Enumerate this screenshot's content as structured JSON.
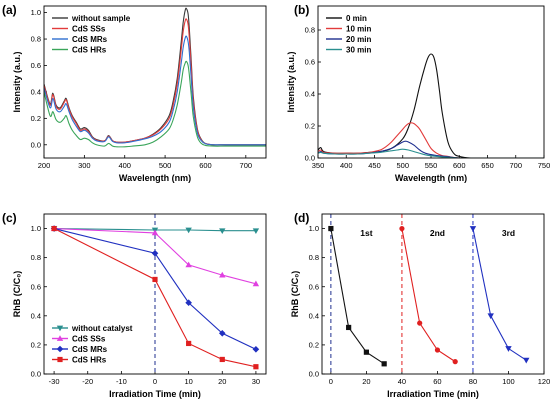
{
  "panels": [
    {
      "id": "a",
      "label": "(a)",
      "type": "line",
      "xlabel": "Wavelength (nm)",
      "ylabel": "Intensity (a.u.)",
      "xlim": [
        200,
        750
      ],
      "ylim": [
        -0.1,
        1.05
      ],
      "xticks": [
        200,
        300,
        400,
        500,
        600,
        700
      ],
      "yticks": [
        0.0,
        0.2,
        0.4,
        0.6,
        0.8,
        1.0
      ],
      "ytick_labels": [
        "0.0",
        "0.2",
        "0.4",
        "0.6",
        "0.8",
        "1.0"
      ],
      "legend_position": "top-left",
      "markers": false,
      "series": [
        {
          "name": "without sample",
          "color": "#3a3a3a",
          "smooth": true,
          "x": [
            200,
            215,
            222,
            230,
            240,
            250,
            255,
            262,
            270,
            280,
            290,
            300,
            310,
            320,
            330,
            350,
            360,
            370,
            380,
            400,
            420,
            450,
            470,
            490,
            510,
            520,
            530,
            540,
            545,
            550,
            553,
            557,
            560,
            565,
            570,
            580,
            590,
            600,
            620,
            650,
            700,
            750
          ],
          "y": [
            0.46,
            0.31,
            0.39,
            0.3,
            0.28,
            0.33,
            0.35,
            0.28,
            0.22,
            0.17,
            0.12,
            0.13,
            0.11,
            0.06,
            0.04,
            0.03,
            0.07,
            0.03,
            0.02,
            0.02,
            0.03,
            0.05,
            0.08,
            0.13,
            0.22,
            0.33,
            0.5,
            0.78,
            0.93,
            1.02,
            1.03,
            0.99,
            0.88,
            0.62,
            0.36,
            0.12,
            0.04,
            0.01,
            0.0,
            0.0,
            0.0,
            0.0
          ]
        },
        {
          "name": "CdS SSs",
          "color": "#e23b3b",
          "smooth": true,
          "x": [
            200,
            215,
            222,
            230,
            240,
            250,
            255,
            262,
            270,
            280,
            290,
            300,
            310,
            320,
            330,
            350,
            360,
            370,
            380,
            400,
            420,
            450,
            470,
            490,
            510,
            520,
            530,
            540,
            545,
            550,
            553,
            557,
            560,
            565,
            570,
            580,
            590,
            600,
            620,
            650,
            700,
            750
          ],
          "y": [
            0.45,
            0.3,
            0.38,
            0.29,
            0.27,
            0.32,
            0.34,
            0.27,
            0.21,
            0.16,
            0.11,
            0.12,
            0.1,
            0.055,
            0.035,
            0.03,
            0.065,
            0.03,
            0.02,
            0.02,
            0.03,
            0.05,
            0.075,
            0.12,
            0.2,
            0.3,
            0.46,
            0.72,
            0.86,
            0.94,
            0.95,
            0.91,
            0.81,
            0.57,
            0.33,
            0.11,
            0.035,
            0.01,
            0.0,
            0.0,
            0.0,
            0.0
          ]
        },
        {
          "name": "CdS MRs",
          "color": "#2f6fd0",
          "smooth": true,
          "x": [
            200,
            215,
            222,
            230,
            240,
            250,
            255,
            262,
            270,
            280,
            290,
            300,
            310,
            320,
            330,
            350,
            360,
            370,
            380,
            400,
            420,
            450,
            470,
            490,
            510,
            520,
            530,
            540,
            545,
            550,
            553,
            557,
            560,
            565,
            570,
            580,
            590,
            600,
            620,
            650,
            700,
            750
          ],
          "y": [
            0.43,
            0.28,
            0.35,
            0.27,
            0.25,
            0.29,
            0.31,
            0.25,
            0.19,
            0.14,
            0.1,
            0.11,
            0.09,
            0.05,
            0.03,
            0.025,
            0.06,
            0.025,
            0.015,
            0.015,
            0.025,
            0.045,
            0.065,
            0.1,
            0.17,
            0.26,
            0.4,
            0.62,
            0.74,
            0.81,
            0.82,
            0.78,
            0.7,
            0.49,
            0.28,
            0.09,
            0.03,
            0.008,
            0.0,
            0.0,
            0.0,
            0.0
          ]
        },
        {
          "name": "CdS HRs",
          "color": "#3aa55a",
          "smooth": true,
          "x": [
            200,
            215,
            222,
            230,
            240,
            250,
            255,
            262,
            270,
            280,
            290,
            300,
            310,
            320,
            330,
            350,
            360,
            370,
            380,
            400,
            420,
            450,
            470,
            490,
            510,
            520,
            530,
            540,
            545,
            550,
            553,
            557,
            560,
            565,
            570,
            580,
            590,
            600,
            620,
            650,
            700,
            750
          ],
          "y": [
            0.4,
            0.22,
            0.25,
            0.19,
            0.17,
            0.2,
            0.22,
            0.16,
            0.11,
            0.07,
            0.04,
            0.05,
            0.04,
            0.015,
            0.0,
            -0.01,
            0.01,
            -0.01,
            -0.015,
            -0.015,
            -0.01,
            0.0,
            0.02,
            0.06,
            0.12,
            0.19,
            0.3,
            0.47,
            0.57,
            0.62,
            0.63,
            0.6,
            0.53,
            0.37,
            0.21,
            0.06,
            0.01,
            -0.005,
            -0.01,
            -0.01,
            -0.01,
            -0.01
          ]
        }
      ]
    },
    {
      "id": "b",
      "label": "(b)",
      "type": "line",
      "xlabel": "Wavelength (nm)",
      "ylabel": "Intensity (a.u.)",
      "xlim": [
        350,
        750
      ],
      "ylim": [
        0.0,
        0.95
      ],
      "xticks": [
        350,
        400,
        450,
        500,
        550,
        600,
        650,
        700,
        750
      ],
      "yticks": [
        0.0,
        0.2,
        0.4,
        0.6,
        0.8
      ],
      "ytick_labels": [
        "0.0",
        "0.2",
        "0.4",
        "0.6",
        "0.8"
      ],
      "legend_position": "top-left",
      "markers": false,
      "series": [
        {
          "name": "0 min",
          "color": "#111111",
          "smooth": true,
          "x": [
            350,
            355,
            360,
            380,
            400,
            420,
            440,
            460,
            480,
            500,
            510,
            520,
            530,
            540,
            545,
            550,
            555,
            560,
            565,
            570,
            580,
            590,
            600,
            620,
            650,
            700,
            750
          ],
          "y": [
            0.05,
            0.065,
            0.04,
            0.03,
            0.03,
            0.03,
            0.035,
            0.04,
            0.06,
            0.12,
            0.19,
            0.3,
            0.45,
            0.58,
            0.63,
            0.65,
            0.63,
            0.55,
            0.42,
            0.28,
            0.1,
            0.03,
            0.01,
            0.0,
            0.0,
            0.0,
            0.0
          ]
        },
        {
          "name": "10 min",
          "color": "#e23b3b",
          "smooth": true,
          "x": [
            350,
            355,
            360,
            380,
            400,
            420,
            440,
            460,
            470,
            480,
            490,
            500,
            505,
            510,
            515,
            520,
            525,
            530,
            540,
            550,
            560,
            570,
            580,
            600,
            650,
            700,
            750
          ],
          "y": [
            0.04,
            0.05,
            0.035,
            0.03,
            0.03,
            0.03,
            0.035,
            0.05,
            0.07,
            0.1,
            0.14,
            0.18,
            0.2,
            0.215,
            0.22,
            0.215,
            0.2,
            0.18,
            0.12,
            0.06,
            0.03,
            0.015,
            0.01,
            0.0,
            0.0,
            0.0,
            0.0
          ]
        },
        {
          "name": "20 min",
          "color": "#1f2f8f",
          "smooth": true,
          "x": [
            350,
            355,
            360,
            380,
            400,
            420,
            440,
            460,
            480,
            490,
            500,
            505,
            510,
            520,
            530,
            540,
            560,
            580,
            600,
            650,
            700,
            750
          ],
          "y": [
            0.03,
            0.04,
            0.03,
            0.025,
            0.025,
            0.025,
            0.03,
            0.04,
            0.06,
            0.08,
            0.1,
            0.105,
            0.1,
            0.08,
            0.05,
            0.03,
            0.015,
            0.008,
            0.0,
            0.0,
            0.0,
            0.0
          ]
        },
        {
          "name": "30 min",
          "color": "#2a8f8f",
          "smooth": true,
          "x": [
            350,
            355,
            360,
            380,
            400,
            420,
            440,
            460,
            480,
            490,
            500,
            510,
            520,
            540,
            560,
            600,
            650,
            700,
            750
          ],
          "y": [
            0.03,
            0.035,
            0.03,
            0.025,
            0.025,
            0.025,
            0.03,
            0.035,
            0.045,
            0.05,
            0.055,
            0.05,
            0.04,
            0.02,
            0.01,
            0.0,
            0.0,
            0.0,
            0.0
          ]
        }
      ]
    },
    {
      "id": "c",
      "label": "(c)",
      "type": "line",
      "xlabel": "Irradiation Time (min)",
      "ylabel": "RhB (C/C₀)",
      "xlim": [
        -33,
        33
      ],
      "ylim": [
        0.0,
        1.1
      ],
      "xticks": [
        -30,
        -20,
        -10,
        0,
        10,
        20,
        30
      ],
      "yticks": [
        0.0,
        0.2,
        0.4,
        0.6,
        0.8,
        1.0
      ],
      "ytick_labels": [
        "0.0",
        "0.2",
        "0.4",
        "0.6",
        "0.8",
        "1.0"
      ],
      "legend_position": "bottom-left",
      "markers": true,
      "vlines": [
        {
          "x": 0,
          "color": "#1f2f8f"
        }
      ],
      "series": [
        {
          "name": "without catalyst",
          "color": "#2a8f8f",
          "marker": "tri-down",
          "x": [
            -30,
            0,
            10,
            20,
            30
          ],
          "y": [
            1.0,
            0.99,
            0.99,
            0.985,
            0.985
          ]
        },
        {
          "name": "CdS SSs",
          "color": "#e040e0",
          "marker": "tri-up",
          "x": [
            -30,
            0,
            10,
            20,
            30
          ],
          "y": [
            1.0,
            0.97,
            0.75,
            0.68,
            0.62
          ]
        },
        {
          "name": "CdS MRs",
          "color": "#2030c0",
          "marker": "diamond",
          "x": [
            -30,
            0,
            10,
            20,
            30
          ],
          "y": [
            1.0,
            0.83,
            0.49,
            0.28,
            0.17
          ]
        },
        {
          "name": "CdS HRs",
          "color": "#e02020",
          "marker": "square",
          "x": [
            -30,
            0,
            10,
            20,
            30
          ],
          "y": [
            1.0,
            0.65,
            0.21,
            0.1,
            0.05
          ]
        }
      ]
    },
    {
      "id": "d",
      "label": "(d)",
      "type": "line",
      "xlabel": "Irradiation Time (min)",
      "ylabel": "RhB (C/C₀)",
      "xlim": [
        -5,
        120
      ],
      "ylim": [
        0.0,
        1.1
      ],
      "xticks": [
        0,
        20,
        40,
        60,
        80,
        100,
        120
      ],
      "yticks": [
        0.0,
        0.2,
        0.4,
        0.6,
        0.8,
        1.0
      ],
      "ytick_labels": [
        "0.0",
        "0.2",
        "0.4",
        "0.6",
        "0.8",
        "1.0"
      ],
      "markers": true,
      "vlines": [
        {
          "x": 0,
          "color": "#1f2f8f"
        },
        {
          "x": 40,
          "color": "#e02020"
        },
        {
          "x": 80,
          "color": "#2030c0"
        }
      ],
      "annotations": [
        {
          "text": "1st",
          "x": 20,
          "y": 0.95
        },
        {
          "text": "2nd",
          "x": 60,
          "y": 0.95
        },
        {
          "text": "3rd",
          "x": 100,
          "y": 0.95
        }
      ],
      "series": [
        {
          "name": "",
          "color": "#111111",
          "marker": "square",
          "x": [
            0,
            10,
            20,
            30
          ],
          "y": [
            1.0,
            0.32,
            0.15,
            0.07
          ]
        },
        {
          "name": "",
          "color": "#e02020",
          "marker": "circle",
          "x": [
            40,
            50,
            60,
            70
          ],
          "y": [
            1.0,
            0.35,
            0.165,
            0.085
          ]
        },
        {
          "name": "",
          "color": "#2030c0",
          "marker": "tri-down",
          "x": [
            80,
            90,
            100,
            110
          ],
          "y": [
            1.0,
            0.4,
            0.175,
            0.095
          ]
        }
      ]
    }
  ]
}
